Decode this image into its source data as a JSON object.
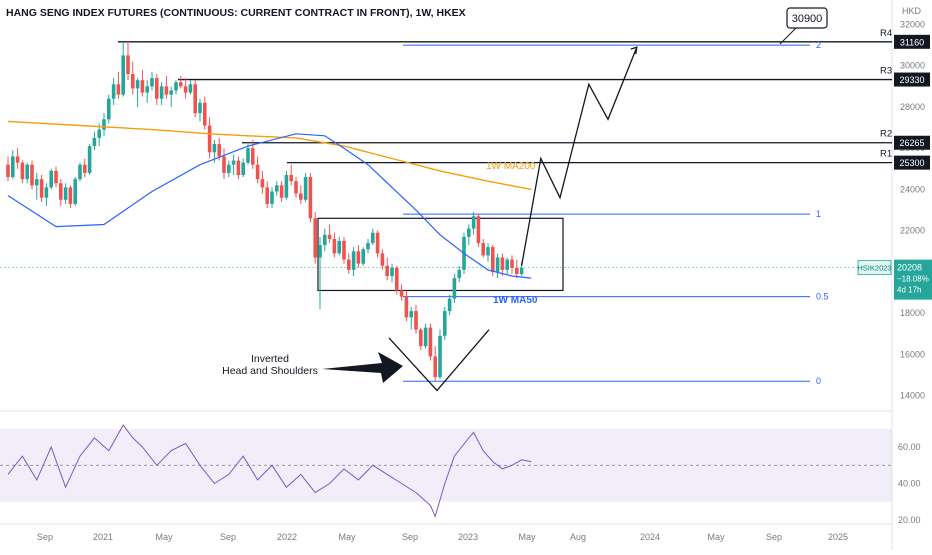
{
  "header": {
    "title": "HANG SENG INDEX FUTURES (CONTINUOUS: CURRENT CONTRACT IN FRONT), 1W, HKEX"
  },
  "currency": "HKD",
  "chart_data": [
    {
      "type": "candlestick",
      "title": "HANG SENG INDEX FUTURES (CONTINUOUS: CURRENT CONTRACT IN FRONT), 1W, HKEX",
      "y_unit": "HKD",
      "ylim": [
        13400,
        32800
      ],
      "y_ticks": [
        14000,
        16000,
        18000,
        20000,
        22000,
        24000,
        26000,
        28000,
        30000,
        32000
      ],
      "x_ticks": [
        "Sep",
        "2021",
        "May",
        "Sep",
        "2022",
        "May",
        "Sep",
        "2023",
        "May",
        "Aug",
        "2024",
        "May",
        "Sep",
        "2025"
      ],
      "candles": [
        [
          25200,
          25600,
          24400,
          24600
        ],
        [
          24600,
          25900,
          24500,
          25600
        ],
        [
          25600,
          26000,
          25000,
          25300
        ],
        [
          25300,
          25400,
          24300,
          24500
        ],
        [
          24500,
          25300,
          24300,
          25200
        ],
        [
          25200,
          25400,
          24000,
          24200
        ],
        [
          24200,
          24800,
          23500,
          24500
        ],
        [
          24500,
          24700,
          23400,
          23600
        ],
        [
          23600,
          24300,
          23200,
          24100
        ],
        [
          24100,
          25000,
          24000,
          24900
        ],
        [
          24900,
          25100,
          24100,
          24300
        ],
        [
          24300,
          24500,
          23200,
          23500
        ],
        [
          23500,
          24300,
          23300,
          24100
        ],
        [
          24100,
          24200,
          23100,
          23300
        ],
        [
          23300,
          24600,
          23200,
          24500
        ],
        [
          24500,
          25300,
          24400,
          25200
        ],
        [
          25200,
          25500,
          24600,
          24800
        ],
        [
          24800,
          26200,
          24700,
          26100
        ],
        [
          26100,
          26800,
          25900,
          26500
        ],
        [
          26500,
          27200,
          26100,
          26900
        ],
        [
          26900,
          27700,
          26600,
          27400
        ],
        [
          27400,
          28600,
          27200,
          28400
        ],
        [
          28400,
          29400,
          28100,
          29100
        ],
        [
          29100,
          29700,
          28400,
          28600
        ],
        [
          28600,
          31100,
          28500,
          30500
        ],
        [
          30500,
          31200,
          29300,
          29600
        ],
        [
          29600,
          30200,
          28600,
          28900
        ],
        [
          28900,
          29400,
          28000,
          29300
        ],
        [
          29300,
          29800,
          28500,
          28700
        ],
        [
          28700,
          29300,
          28200,
          29000
        ],
        [
          29000,
          29700,
          28800,
          29400
        ],
        [
          29400,
          29600,
          28100,
          28400
        ],
        [
          28400,
          29200,
          28100,
          29000
        ],
        [
          29000,
          29500,
          28400,
          28600
        ],
        [
          28600,
          29000,
          28000,
          28800
        ],
        [
          28800,
          29300,
          28600,
          29200
        ],
        [
          29200,
          29500,
          28900,
          29000
        ],
        [
          29000,
          29400,
          28400,
          28700
        ],
        [
          28700,
          29300,
          28600,
          29100
        ],
        [
          29100,
          29300,
          27500,
          27700
        ],
        [
          27700,
          28400,
          27300,
          28200
        ],
        [
          28200,
          28500,
          26900,
          27100
        ],
        [
          27100,
          27500,
          25500,
          25800
        ],
        [
          25800,
          26400,
          25300,
          26200
        ],
        [
          26200,
          26500,
          25400,
          25600
        ],
        [
          25600,
          26000,
          24500,
          24800
        ],
        [
          24800,
          25400,
          24600,
          25200
        ],
        [
          25200,
          25700,
          24700,
          25400
        ],
        [
          25400,
          25600,
          24500,
          24700
        ],
        [
          24700,
          25500,
          24600,
          25300
        ],
        [
          25300,
          26200,
          25200,
          26000
        ],
        [
          26000,
          26400,
          25000,
          25200
        ],
        [
          25200,
          25600,
          24300,
          24500
        ],
        [
          24500,
          24900,
          23800,
          24100
        ],
        [
          24100,
          24400,
          23100,
          23300
        ],
        [
          23300,
          24100,
          23100,
          23900
        ],
        [
          23900,
          24400,
          23700,
          24200
        ],
        [
          24200,
          24400,
          23400,
          23600
        ],
        [
          23600,
          24900,
          23500,
          24700
        ],
        [
          24700,
          25200,
          24200,
          24400
        ],
        [
          24400,
          24600,
          23600,
          23800
        ],
        [
          23800,
          24200,
          23300,
          23500
        ],
        [
          23500,
          24800,
          23400,
          24600
        ],
        [
          24600,
          24800,
          22400,
          22600
        ],
        [
          22600,
          22900,
          20400,
          20700
        ],
        [
          20700,
          21700,
          18200,
          21300
        ],
        [
          21300,
          22100,
          21000,
          21800
        ],
        [
          21800,
          22300,
          21400,
          21600
        ],
        [
          21600,
          21900,
          20700,
          20900
        ],
        [
          20900,
          21700,
          20800,
          21500
        ],
        [
          21500,
          21700,
          20400,
          20600
        ],
        [
          20600,
          20900,
          19900,
          20100
        ],
        [
          20100,
          21200,
          19800,
          21000
        ],
        [
          21000,
          21300,
          20200,
          20400
        ],
        [
          20400,
          21200,
          20300,
          21100
        ],
        [
          21100,
          21600,
          20900,
          21400
        ],
        [
          21400,
          22100,
          21300,
          21900
        ],
        [
          21900,
          22000,
          20700,
          20900
        ],
        [
          20900,
          21100,
          20100,
          20300
        ],
        [
          20300,
          20700,
          19600,
          19800
        ],
        [
          19800,
          20400,
          19500,
          20200
        ],
        [
          20200,
          20300,
          18900,
          19100
        ],
        [
          19100,
          19400,
          18600,
          18800
        ],
        [
          18800,
          19100,
          17600,
          17800
        ],
        [
          17800,
          18300,
          17200,
          18100
        ],
        [
          18100,
          18400,
          17000,
          17200
        ],
        [
          17200,
          17300,
          16200,
          16400
        ],
        [
          16400,
          17500,
          16300,
          17300
        ],
        [
          17300,
          17500,
          15700,
          15900
        ],
        [
          15900,
          16400,
          14700,
          14900
        ],
        [
          14900,
          17200,
          14800,
          16900
        ],
        [
          16900,
          18300,
          16700,
          18100
        ],
        [
          18100,
          18900,
          17900,
          18700
        ],
        [
          18700,
          19900,
          18500,
          19700
        ],
        [
          19700,
          20300,
          19500,
          20100
        ],
        [
          20100,
          21900,
          19900,
          21700
        ],
        [
          21700,
          22300,
          21300,
          22100
        ],
        [
          22100,
          22900,
          21800,
          22700
        ],
        [
          22700,
          22800,
          21200,
          21400
        ],
        [
          21400,
          21600,
          20700,
          20800
        ],
        [
          20800,
          21400,
          20500,
          21200
        ],
        [
          21200,
          21300,
          19800,
          20000
        ],
        [
          20000,
          20900,
          19700,
          20700
        ],
        [
          20700,
          20900,
          19800,
          20100
        ],
        [
          20100,
          20700,
          19900,
          20600
        ],
        [
          20600,
          20800,
          19900,
          20200
        ],
        [
          20200,
          20600,
          19700,
          19900
        ],
        [
          19900,
          20500,
          19800,
          20208
        ]
      ],
      "series": [
        {
          "name": "1W MA50",
          "values": [
            [
              0,
              23700
            ],
            [
              10,
              22200
            ],
            [
              20,
              22300
            ],
            [
              30,
              23900
            ],
            [
              40,
              25200
            ],
            [
              50,
              26100
            ],
            [
              60,
              26700
            ],
            [
              66,
              26600
            ],
            [
              70,
              26000
            ],
            [
              75,
              25200
            ],
            [
              80,
              24100
            ],
            [
              85,
              23000
            ],
            [
              90,
              21800
            ],
            [
              95,
              20900
            ],
            [
              100,
              20100
            ],
            [
              105,
              19800
            ],
            [
              109,
              19700
            ]
          ]
        },
        {
          "name": "1W MA200",
          "values": [
            [
              0,
              27300
            ],
            [
              15,
              27100
            ],
            [
              30,
              26900
            ],
            [
              42,
              26700
            ],
            [
              50,
              26600
            ],
            [
              60,
              26500
            ],
            [
              70,
              26100
            ],
            [
              80,
              25500
            ],
            [
              90,
              24900
            ],
            [
              100,
              24400
            ],
            [
              109,
              24000
            ]
          ]
        },
        {
          "name": "RSI",
          "pane": "oscillator",
          "ylim": [
            20,
            77
          ],
          "y_ticks": [
            20,
            40,
            60
          ],
          "band": [
            30,
            70
          ],
          "midline": 50,
          "values": [
            [
              0,
              45
            ],
            [
              3,
              55
            ],
            [
              6,
              42
            ],
            [
              9,
              60
            ],
            [
              12,
              38
            ],
            [
              15,
              55
            ],
            [
              18,
              65
            ],
            [
              21,
              58
            ],
            [
              24,
              72
            ],
            [
              26,
              65
            ],
            [
              28,
              60
            ],
            [
              31,
              50
            ],
            [
              34,
              58
            ],
            [
              37,
              62
            ],
            [
              40,
              50
            ],
            [
              43,
              40
            ],
            [
              46,
              45
            ],
            [
              49,
              55
            ],
            [
              52,
              42
            ],
            [
              55,
              50
            ],
            [
              58,
              38
            ],
            [
              61,
              45
            ],
            [
              64,
              35
            ],
            [
              67,
              40
            ],
            [
              70,
              48
            ],
            [
              73,
              42
            ],
            [
              76,
              50
            ],
            [
              79,
              45
            ],
            [
              82,
              40
            ],
            [
              85,
              35
            ],
            [
              88,
              28
            ],
            [
              89,
              22
            ],
            [
              91,
              40
            ],
            [
              93,
              55
            ],
            [
              96,
              65
            ],
            [
              97,
              68
            ],
            [
              99,
              58
            ],
            [
              101,
              52
            ],
            [
              103,
              48
            ],
            [
              105,
              50
            ],
            [
              107,
              53
            ],
            [
              109,
              52
            ]
          ]
        }
      ],
      "current": {
        "symbol": "HSIK2023",
        "price": "20208",
        "change": "−18.08%",
        "countdown": "4d 17h"
      },
      "annotations": {
        "target": "30900",
        "pattern": "Inverted\nHead and Shoulders",
        "ma200_label": "1W MA200",
        "ma50_label": "1W MA50",
        "resistances": [
          {
            "name": "R4",
            "value": 31160
          },
          {
            "name": "R3",
            "value": 29330
          },
          {
            "name": "R2",
            "value": 26265
          },
          {
            "name": "R1",
            "value": 25300
          }
        ],
        "fib_levels": [
          {
            "label": "2",
            "value": 31000
          },
          {
            "label": "1",
            "value": 22800
          },
          {
            "label": "0.5",
            "value": 18800
          },
          {
            "label": "0",
            "value": 14700
          }
        ],
        "projected_path": [
          [
            20300,
            0
          ],
          [
            25500,
            4
          ],
          [
            23600,
            8
          ],
          [
            29100,
            14
          ],
          [
            27400,
            18
          ],
          [
            30900,
            24
          ]
        ]
      },
      "colors": {
        "bull": "#26a69a",
        "bear": "#ef5350",
        "ma50": "#2962ff",
        "ma200": "#f59e0b",
        "rsi": "#7e57c2",
        "fib": "#2962ff"
      }
    }
  ]
}
